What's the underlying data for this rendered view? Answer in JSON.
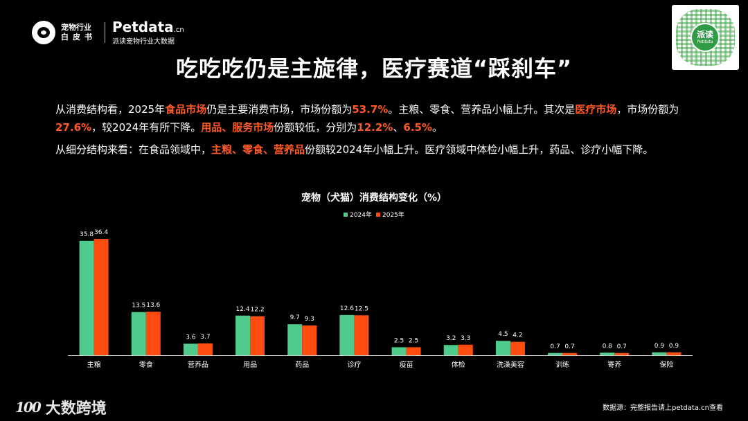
{
  "header": {
    "org_line1": "宠物行业",
    "org_line2": "白皮书",
    "brand": "Petdata",
    "brand_suffix": ".cn",
    "brand_sub": "派读宠物行业大数据",
    "qr_label": "派读",
    "qr_sub": "Petdata"
  },
  "title": "吃吃吃仍是主旋律，医疗赛道“踩刹车”",
  "paragraph1": [
    {
      "t": "从消费结构看，2025年",
      "h": false
    },
    {
      "t": "食品市场",
      "h": true
    },
    {
      "t": "仍是主要消费市场，市场份额为",
      "h": false
    },
    {
      "t": "53.7%",
      "h": true
    },
    {
      "t": "。主粮、零食、营养品小幅上升。其次是",
      "h": false
    },
    {
      "t": "医疗市场",
      "h": true
    },
    {
      "t": "，市场份额为",
      "h": false
    },
    {
      "t": "27.6%",
      "h": true
    },
    {
      "t": "，较2024年有所下降。",
      "h": false
    },
    {
      "t": "用品、服务市场",
      "h": true
    },
    {
      "t": "份额较低，分别为",
      "h": false
    },
    {
      "t": "12.2%",
      "h": true
    },
    {
      "t": "、",
      "h": false
    },
    {
      "t": "6.5%",
      "h": true
    },
    {
      "t": "。",
      "h": false
    }
  ],
  "paragraph2": [
    {
      "t": "从细分结构来看：在食品领域中，",
      "h": false
    },
    {
      "t": "主粮、零食、营养品",
      "h": true
    },
    {
      "t": "份额较2024年小幅上升。医疗领域中体检小幅上升，药品、诊疗小幅下降。",
      "h": false
    }
  ],
  "chart_data": {
    "type": "bar",
    "title": "宠物（犬猫）消费结构变化（%）",
    "categories": [
      "主粮",
      "零食",
      "营养品",
      "用品",
      "药品",
      "诊疗",
      "疫苗",
      "体检",
      "洗澡美容",
      "训练",
      "寄养",
      "保险"
    ],
    "series": [
      {
        "name": "2024年",
        "color": "#4ecb8d",
        "values": [
          35.8,
          13.5,
          3.6,
          12.4,
          9.7,
          12.6,
          2.5,
          3.2,
          4.5,
          0.7,
          0.8,
          0.9
        ]
      },
      {
        "name": "2025年",
        "color": "#ff4d12",
        "values": [
          36.4,
          13.6,
          3.7,
          12.2,
          9.3,
          12.5,
          2.5,
          3.3,
          4.2,
          0.7,
          0.7,
          0.9
        ]
      }
    ],
    "ylim": [
      0,
      40
    ],
    "grid": false,
    "legend": "top-center",
    "axis_color": "#cccccc"
  },
  "footer": {
    "logo_num": "100",
    "logo_text": "大数跨境",
    "source": "数据源：完整报告请上petdata.cn查看"
  }
}
